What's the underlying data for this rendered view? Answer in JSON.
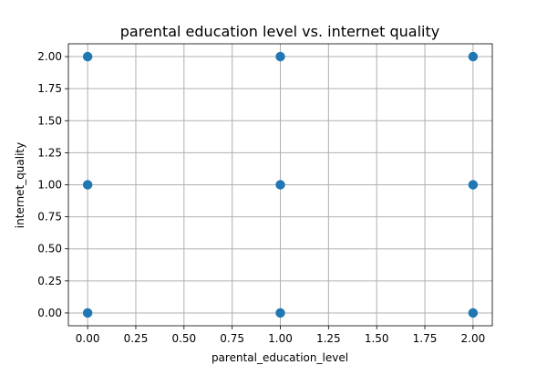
{
  "chart_data": {
    "type": "scatter",
    "title": "parental education level vs. internet quality",
    "xlabel": "parental_education_level",
    "ylabel": "internet_quality",
    "xlim": [
      -0.1,
      2.1
    ],
    "ylim": [
      -0.1,
      2.1
    ],
    "xticks": [
      "0.00",
      "0.25",
      "0.50",
      "0.75",
      "1.00",
      "1.25",
      "1.50",
      "1.75",
      "2.00"
    ],
    "yticks": [
      "0.00",
      "0.25",
      "0.50",
      "0.75",
      "1.00",
      "1.25",
      "1.50",
      "1.75",
      "2.00"
    ],
    "grid": true,
    "point_color": "#1f77b4",
    "points": [
      {
        "x": 0,
        "y": 0
      },
      {
        "x": 0,
        "y": 1
      },
      {
        "x": 0,
        "y": 2
      },
      {
        "x": 1,
        "y": 0
      },
      {
        "x": 1,
        "y": 1
      },
      {
        "x": 1,
        "y": 2
      },
      {
        "x": 2,
        "y": 0
      },
      {
        "x": 2,
        "y": 1
      },
      {
        "x": 2,
        "y": 2
      }
    ]
  }
}
